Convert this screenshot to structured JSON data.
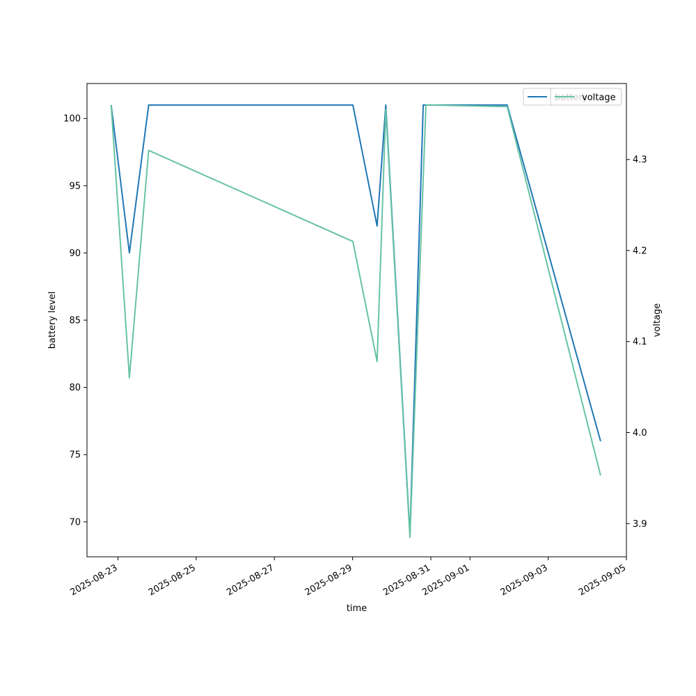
{
  "chart_data": {
    "type": "line",
    "xlabel": "time",
    "ylabel_left": "battery level",
    "ylabel_right": "voltage",
    "x_tick_labels": [
      "2025-08-23",
      "2025-08-25",
      "2025-08-27",
      "2025-08-29",
      "2025-08-31",
      "2025-09-01",
      "2025-09-03",
      "2025-09-05"
    ],
    "x_ticks": [
      "2025-08-23T00:00",
      "2025-08-25T00:00",
      "2025-08-27T00:00",
      "2025-08-29T00:00",
      "2025-08-31T00:00",
      "2025-09-01T00:00",
      "2025-09-03T00:00",
      "2025-09-05T00:00"
    ],
    "xlim": [
      "2025-08-22T05:00",
      "2025-09-05T00:00"
    ],
    "ylim_left": [
      67.4,
      102.6
    ],
    "ylim_right": [
      3.8635,
      4.3835
    ],
    "y_ticks_left": [
      70,
      75,
      80,
      85,
      90,
      95,
      100
    ],
    "y_ticks_right": [
      3.9,
      4.0,
      4.1,
      4.2,
      4.3
    ],
    "legend": {
      "placement": "upper right",
      "entries": [
        "battery",
        "voltage"
      ]
    },
    "grid": false,
    "series": [
      {
        "name": "battery",
        "axis": "left",
        "color": "#1f77b4",
        "x": [
          "2025-08-22T19:50",
          "2025-08-23T07:00",
          "2025-08-23T18:50",
          "2025-08-29T00:10",
          "2025-08-29T15:00",
          "2025-08-29T20:20",
          "2025-08-30T11:10",
          "2025-08-30T19:20",
          "2025-09-01T22:50",
          "2025-09-04T08:10"
        ],
        "values": [
          101,
          90,
          101,
          101,
          92,
          101,
          69,
          101,
          101,
          76
        ]
      },
      {
        "name": "voltage",
        "axis": "right",
        "color": "#66c2a5",
        "x": [
          "2025-08-22T19:50",
          "2025-08-23T07:00",
          "2025-08-23T18:50",
          "2025-08-29T00:10",
          "2025-08-29T15:00",
          "2025-08-29T20:20",
          "2025-08-30T11:10",
          "2025-08-30T21:00",
          "2025-09-01T22:50",
          "2025-09-04T08:10"
        ],
        "values": [
          4.36,
          4.06,
          4.31,
          4.21,
          4.078,
          4.355,
          3.885,
          4.36,
          4.358,
          3.953
        ]
      }
    ]
  }
}
